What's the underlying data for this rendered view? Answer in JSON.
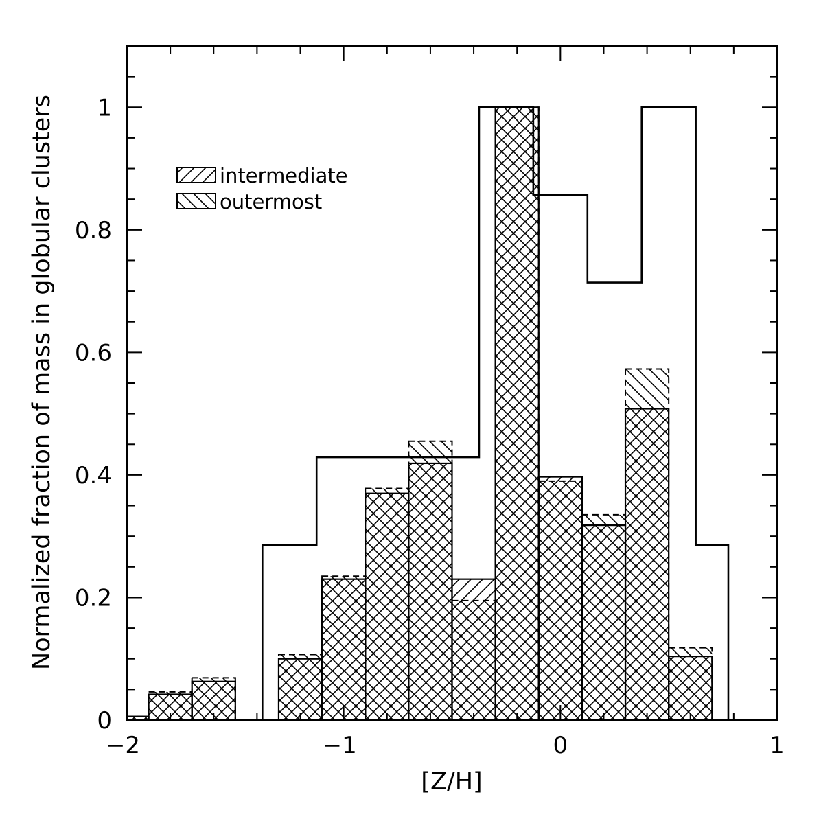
{
  "chart_data": {
    "type": "bar",
    "xlabel": "[Z/H]",
    "ylabel": "Normalized fraction of mass in globular clusters",
    "xlim": [
      -2,
      1
    ],
    "ylim": [
      0,
      1.1
    ],
    "x_ticks": [
      -2,
      -1,
      0,
      1
    ],
    "x_tick_labels": [
      "−2",
      "−1",
      "0",
      "1"
    ],
    "y_ticks": [
      0,
      0.2,
      0.4,
      0.6,
      0.8,
      1
    ],
    "y_tick_labels": [
      "0",
      "0.2",
      "0.4",
      "0.6",
      "0.8",
      "1"
    ],
    "legend": {
      "placement": "top-left",
      "entries": [
        {
          "label": "intermediate",
          "hatch": "forward-diagonal"
        },
        {
          "label": "outermost",
          "hatch": "back-diagonal"
        }
      ]
    },
    "series": [
      {
        "style": "open step outline",
        "bins": [
          {
            "x0": -2.0,
            "x1": -1.375,
            "y": 0
          },
          {
            "x0": -1.375,
            "x1": -1.125,
            "y": 0.286
          },
          {
            "x0": -1.125,
            "x1": -0.375,
            "y": 0.429
          },
          {
            "x0": -0.375,
            "x1": -0.125,
            "y": 1.0
          },
          {
            "x0": -0.125,
            "x1": 0.125,
            "y": 0.857
          },
          {
            "x0": 0.125,
            "x1": 0.375,
            "y": 0.714
          },
          {
            "x0": 0.375,
            "x1": 0.625,
            "y": 1.0
          },
          {
            "x0": 0.625,
            "x1": 0.775,
            "y": 0.286
          }
        ]
      },
      {
        "name": "intermediate",
        "style": "hatched, forward diagonal",
        "bins": [
          {
            "x0": -2.0,
            "x1": -1.9,
            "y": 0.006
          },
          {
            "x0": -1.9,
            "x1": -1.7,
            "y": 0.042
          },
          {
            "x0": -1.7,
            "x1": -1.5,
            "y": 0.063
          },
          {
            "x0": -1.3,
            "x1": -1.1,
            "y": 0.1
          },
          {
            "x0": -1.1,
            "x1": -0.9,
            "y": 0.23
          },
          {
            "x0": -0.9,
            "x1": -0.7,
            "y": 0.37
          },
          {
            "x0": -0.7,
            "x1": -0.5,
            "y": 0.419
          },
          {
            "x0": -0.5,
            "x1": -0.3,
            "y": 0.23
          },
          {
            "x0": -0.3,
            "x1": -0.1,
            "y": 1.0
          },
          {
            "x0": -0.1,
            "x1": 0.1,
            "y": 0.397
          },
          {
            "x0": 0.1,
            "x1": 0.3,
            "y": 0.318
          },
          {
            "x0": 0.3,
            "x1": 0.5,
            "y": 0.508
          },
          {
            "x0": 0.5,
            "x1": 0.7,
            "y": 0.104
          }
        ]
      },
      {
        "name": "outermost",
        "style": "hatched, back diagonal, dashed outline",
        "bins": [
          {
            "x0": -2.0,
            "x1": -1.9,
            "y": 0.006
          },
          {
            "x0": -1.9,
            "x1": -1.7,
            "y": 0.046
          },
          {
            "x0": -1.7,
            "x1": -1.5,
            "y": 0.069
          },
          {
            "x0": -1.3,
            "x1": -1.1,
            "y": 0.107
          },
          {
            "x0": -1.1,
            "x1": -0.9,
            "y": 0.235
          },
          {
            "x0": -0.9,
            "x1": -0.7,
            "y": 0.378
          },
          {
            "x0": -0.7,
            "x1": -0.5,
            "y": 0.455
          },
          {
            "x0": -0.5,
            "x1": -0.3,
            "y": 0.195
          },
          {
            "x0": -0.3,
            "x1": -0.1,
            "y": 1.0
          },
          {
            "x0": -0.1,
            "x1": 0.1,
            "y": 0.39
          },
          {
            "x0": 0.1,
            "x1": 0.3,
            "y": 0.335
          },
          {
            "x0": 0.3,
            "x1": 0.5,
            "y": 0.573
          },
          {
            "x0": 0.5,
            "x1": 0.7,
            "y": 0.118
          }
        ]
      }
    ],
    "colors": {
      "ink": "#000000",
      "background": "#ffffff"
    },
    "grid": false
  }
}
